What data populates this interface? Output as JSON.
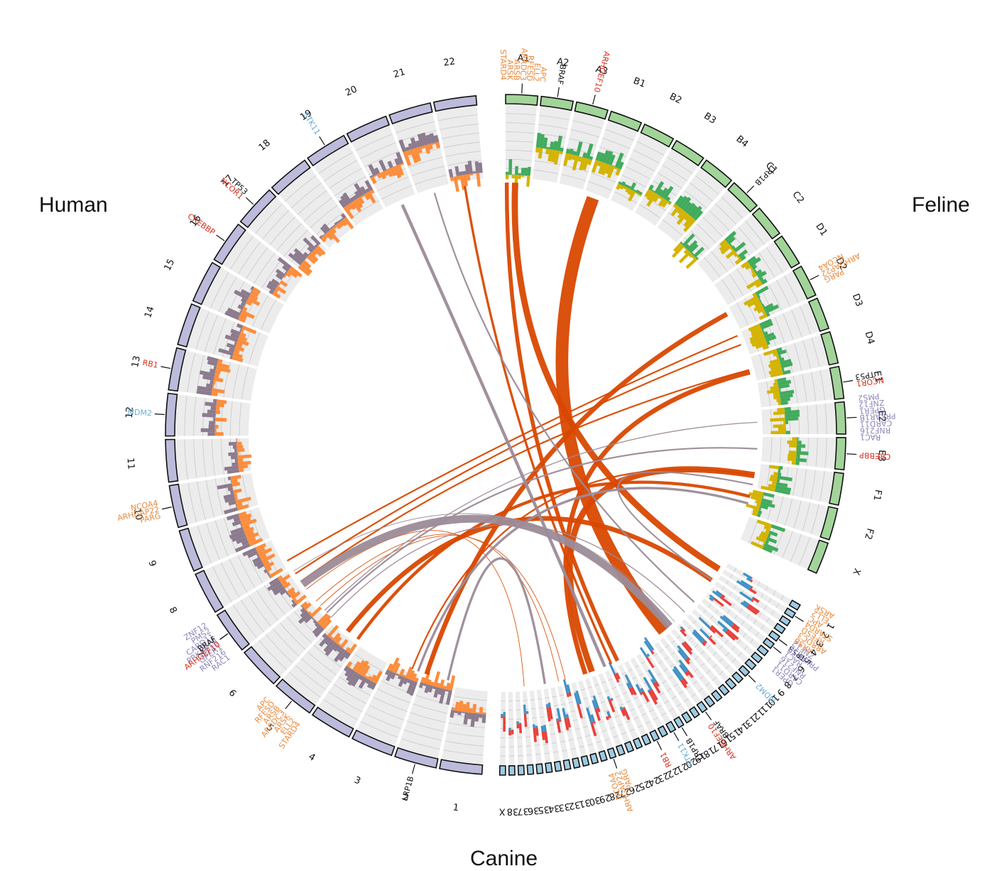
{
  "species_labels": {
    "human": "Human",
    "feline": "Feline",
    "canine": "Canine"
  },
  "colors": {
    "human_block": "#bcbbdb",
    "feline_block": "#a2d49a",
    "canine_block": "#9ecae1",
    "block_edge": "#111111",
    "track_bg": "#ececec",
    "track_line": "#c8c8c8",
    "human_gain": "#8c7b8e",
    "human_loss": "#fd8d3c",
    "feline_gain": "#41ab5d",
    "feline_loss": "#d4b300",
    "canine_gain": "#e8413c",
    "canine_loss": "#4292c6",
    "link_orange": "#d94801",
    "link_mauve": "#9c8b98",
    "gene_orange": "#e8893d",
    "gene_red": "#d7301f",
    "gene_purple": "#8e86b8",
    "gene_blue": "#6baed6",
    "gene_black": "#111111"
  },
  "genomes": [
    {
      "species": "Human",
      "chromosomes": [
        "1",
        "2",
        "3",
        "4",
        "5",
        "6",
        "7",
        "8",
        "9",
        "10",
        "11",
        "12",
        "13",
        "14",
        "15",
        "16",
        "17",
        "18",
        "19",
        "20",
        "21",
        "22"
      ]
    },
    {
      "species": "Feline",
      "chromosomes": [
        "A1",
        "A2",
        "A3",
        "B1",
        "B2",
        "B3",
        "B4",
        "C1",
        "C2",
        "D1",
        "D2",
        "D3",
        "D4",
        "E1",
        "E2",
        "E3",
        "F1",
        "F2",
        "X"
      ]
    },
    {
      "species": "Canine",
      "chromosomes": [
        "1",
        "2",
        "3",
        "4",
        "5",
        "6",
        "7",
        "8",
        "9",
        "10",
        "11",
        "12",
        "13",
        "14",
        "15",
        "16",
        "17",
        "18",
        "19",
        "20",
        "21",
        "22",
        "23",
        "24",
        "25",
        "26",
        "27",
        "28",
        "29",
        "30",
        "31",
        "32",
        "33",
        "34",
        "35",
        "36",
        "37",
        "38",
        "X"
      ]
    }
  ],
  "gene_groups": [
    {
      "species": "Human",
      "chrom": "2",
      "genes": [
        {
          "name": "LRP1B",
          "color": "black"
        }
      ]
    },
    {
      "species": "Human",
      "chrom": "5",
      "genes": [
        {
          "name": "STARD4",
          "color": "orange"
        },
        {
          "name": "ELL2",
          "color": "orange"
        },
        {
          "name": "ARSK",
          "color": "orange"
        },
        {
          "name": "ARRDC3",
          "color": "orange"
        },
        {
          "name": "ARSB",
          "color": "orange"
        },
        {
          "name": "RFESD",
          "color": "orange"
        },
        {
          "name": "APC",
          "color": "orange"
        }
      ]
    },
    {
      "species": "Human",
      "chrom": "7",
      "genes": [
        {
          "name": "RAC1",
          "color": "purple"
        },
        {
          "name": "RNF216",
          "color": "purple"
        },
        {
          "name": "GPER1",
          "color": "purple"
        },
        {
          "name": "PRKAR1B",
          "color": "purple"
        },
        {
          "name": "CARD11",
          "color": "purple"
        },
        {
          "name": "PMS2",
          "color": "purple"
        },
        {
          "name": "ZNF12",
          "color": "purple"
        }
      ]
    },
    {
      "species": "Human",
      "chrom": "7",
      "genes": [
        {
          "name": "ARHGEF10",
          "color": "red"
        },
        {
          "name": "BRAF",
          "color": "black"
        }
      ]
    },
    {
      "species": "Human",
      "chrom": "10",
      "genes": [
        {
          "name": "PARG",
          "color": "orange"
        },
        {
          "name": "ARHGAP22",
          "color": "orange"
        },
        {
          "name": "NCOA4",
          "color": "orange"
        }
      ]
    },
    {
      "species": "Human",
      "chrom": "12",
      "genes": [
        {
          "name": "MDM2",
          "color": "blue"
        }
      ]
    },
    {
      "species": "Human",
      "chrom": "13",
      "genes": [
        {
          "name": "RB1",
          "color": "red"
        }
      ]
    },
    {
      "species": "Human",
      "chrom": "16",
      "genes": [
        {
          "name": "CREBBP",
          "color": "red"
        }
      ]
    },
    {
      "species": "Human",
      "chrom": "17",
      "genes": [
        {
          "name": "NCOR1",
          "color": "red"
        },
        {
          "name": "TP53",
          "color": "black"
        }
      ]
    },
    {
      "species": "Human",
      "chrom": "19",
      "genes": [
        {
          "name": "STK11",
          "color": "blue"
        }
      ]
    },
    {
      "species": "Feline",
      "chrom": "A1",
      "genes": [
        {
          "name": "STARD4",
          "color": "orange"
        },
        {
          "name": "ARSK",
          "color": "orange"
        },
        {
          "name": "ARSB",
          "color": "orange"
        },
        {
          "name": "ARRDC3",
          "color": "orange"
        },
        {
          "name": "RFESD",
          "color": "orange"
        },
        {
          "name": "ELL2",
          "color": "orange"
        },
        {
          "name": "APC",
          "color": "orange"
        }
      ]
    },
    {
      "species": "Feline",
      "chrom": "A2",
      "genes": [
        {
          "name": "BRAF",
          "color": "black"
        }
      ]
    },
    {
      "species": "Feline",
      "chrom": "A3",
      "genes": [
        {
          "name": "ARHGEF10",
          "color": "red"
        }
      ]
    },
    {
      "species": "Feline",
      "chrom": "C1",
      "genes": [
        {
          "name": "LRP1B",
          "color": "black"
        }
      ]
    },
    {
      "species": "Feline",
      "chrom": "D2",
      "genes": [
        {
          "name": "NCOA4",
          "color": "orange"
        },
        {
          "name": "ARHGAP22",
          "color": "orange"
        },
        {
          "name": "PARG",
          "color": "orange"
        }
      ]
    },
    {
      "species": "Feline",
      "chrom": "E1",
      "genes": [
        {
          "name": "TP53",
          "color": "black"
        },
        {
          "name": "NCOR1",
          "color": "red"
        }
      ]
    },
    {
      "species": "Feline",
      "chrom": "E2",
      "genes": [
        {
          "name": "PMS2",
          "color": "purple"
        },
        {
          "name": "ZNF12",
          "color": "purple"
        },
        {
          "name": "GPER1",
          "color": "purple"
        },
        {
          "name": "PRKAR1B",
          "color": "purple"
        },
        {
          "name": "CARD11",
          "color": "purple"
        },
        {
          "name": "RNF216",
          "color": "purple"
        },
        {
          "name": "RAC1",
          "color": "purple"
        }
      ]
    },
    {
      "species": "Feline",
      "chrom": "E3",
      "genes": [
        {
          "name": "CREBBP",
          "color": "red"
        }
      ]
    },
    {
      "species": "Canine",
      "chrom": "2",
      "genes": [
        {
          "name": "ARSK",
          "color": "orange"
        },
        {
          "name": "ELL2",
          "color": "orange"
        },
        {
          "name": "APC",
          "color": "orange"
        },
        {
          "name": "STARD4",
          "color": "orange"
        },
        {
          "name": "RFESD",
          "color": "orange"
        },
        {
          "name": "ARRDC3",
          "color": "orange"
        },
        {
          "name": "ARSB",
          "color": "orange"
        }
      ]
    },
    {
      "species": "Canine",
      "chrom": "5",
      "genes": [
        {
          "name": "PRKAR1B",
          "color": "purple"
        }
      ]
    },
    {
      "species": "Canine",
      "chrom": "5",
      "genes": [
        {
          "name": "TP53",
          "color": "black"
        }
      ]
    },
    {
      "species": "Canine",
      "chrom": "6",
      "genes": [
        {
          "name": "ZNF12",
          "color": "purple"
        },
        {
          "name": "PMS2",
          "color": "purple"
        },
        {
          "name": "RAC1",
          "color": "purple"
        },
        {
          "name": "RNF216",
          "color": "purple"
        },
        {
          "name": "CARD11",
          "color": "purple"
        },
        {
          "name": "GPER1",
          "color": "purple"
        }
      ]
    },
    {
      "species": "Canine",
      "chrom": "10",
      "genes": [
        {
          "name": "MDM2",
          "color": "blue"
        }
      ]
    },
    {
      "species": "Canine",
      "chrom": "16",
      "genes": [
        {
          "name": "BRAF",
          "color": "black"
        },
        {
          "name": "ARHGEF10",
          "color": "red"
        }
      ]
    },
    {
      "species": "Canine",
      "chrom": "19",
      "genes": [
        {
          "name": "LRP1B",
          "color": "black"
        }
      ]
    },
    {
      "species": "Canine",
      "chrom": "20",
      "genes": [
        {
          "name": "STK11",
          "color": "blue"
        }
      ]
    },
    {
      "species": "Canine",
      "chrom": "22",
      "genes": [
        {
          "name": "RB1",
          "color": "red"
        }
      ]
    },
    {
      "species": "Canine",
      "chrom": "27",
      "genes": [
        {
          "name": "PARG",
          "color": "orange"
        },
        {
          "name": "ARHGAP22",
          "color": "orange"
        },
        {
          "name": "NCOA4",
          "color": "orange"
        }
      ]
    }
  ],
  "links": [
    {
      "from": {
        "species": "Human",
        "chrom": "5",
        "pos": 0.5
      },
      "to": {
        "species": "Canine",
        "chrom": "4",
        "pos": 0.5
      },
      "color": "orange",
      "weight": 3
    },
    {
      "from": {
        "species": "Human",
        "chrom": "5",
        "pos": 0.1
      },
      "to": {
        "species": "Feline",
        "chrom": "F2",
        "pos": 0.3
      },
      "color": "orange",
      "weight": 2
    },
    {
      "from": {
        "species": "Human",
        "chrom": "2",
        "pos": 0.9
      },
      "to": {
        "species": "Feline",
        "chrom": "D2",
        "pos": 0.2
      },
      "color": "orange",
      "weight": 3
    },
    {
      "from": {
        "species": "Human",
        "chrom": "7",
        "pos": 0.8
      },
      "to": {
        "species": "Feline",
        "chrom": "D3",
        "pos": 0.5
      },
      "color": "orange",
      "weight": 1
    },
    {
      "from": {
        "species": "Human",
        "chrom": "7",
        "pos": 0.5
      },
      "to": {
        "species": "Feline",
        "chrom": "D4",
        "pos": 0.5
      },
      "color": "orange",
      "weight": 1
    },
    {
      "from": {
        "species": "Human",
        "chrom": "8",
        "pos": 0.2
      },
      "to": {
        "species": "Feline",
        "chrom": "D3",
        "pos": 0.1
      },
      "color": "orange",
      "weight": 1
    },
    {
      "from": {
        "species": "Human",
        "chrom": "7",
        "pos": 0.2
      },
      "to": {
        "species": "Canine",
        "chrom": "36",
        "pos": 0.5
      },
      "color": "orange",
      "weight": 0.4
    },
    {
      "from": {
        "species": "Human",
        "chrom": "6",
        "pos": 0.8
      },
      "to": {
        "species": "Canine",
        "chrom": "31",
        "pos": 0.5
      },
      "color": "orange",
      "weight": 0.4
    },
    {
      "from": {
        "species": "Human",
        "chrom": "6",
        "pos": 0.6
      },
      "to": {
        "species": "Canine",
        "chrom": "30",
        "pos": 0.5
      },
      "color": "orange",
      "weight": 0.4
    },
    {
      "from": {
        "species": "Human",
        "chrom": "22",
        "pos": 0.4
      },
      "to": {
        "species": "Canine",
        "chrom": "23",
        "pos": 0.5
      },
      "color": "orange",
      "weight": 1.5
    },
    {
      "from": {
        "species": "Feline",
        "chrom": "A1",
        "pos": 0.05
      },
      "to": {
        "species": "Canine",
        "chrom": "22",
        "pos": 0.5
      },
      "color": "orange",
      "weight": 2.5
    },
    {
      "from": {
        "species": "Feline",
        "chrom": "A1",
        "pos": 0.4
      },
      "to": {
        "species": "Canine",
        "chrom": "2",
        "pos": 0.6
      },
      "color": "orange",
      "weight": 4
    },
    {
      "from": {
        "species": "Feline",
        "chrom": "B1",
        "pos": 0.4
      },
      "to": {
        "species": "Canine",
        "chrom": "14",
        "pos": 0.5
      },
      "color": "orange",
      "weight": 8
    },
    {
      "from": {
        "species": "Feline",
        "chrom": "D4",
        "pos": 0.6
      },
      "to": {
        "species": "Canine",
        "chrom": "27",
        "pos": 0.5
      },
      "color": "orange",
      "weight": 3
    },
    {
      "from": {
        "species": "Feline",
        "chrom": "F1",
        "pos": 0.5
      },
      "to": {
        "species": "Canine",
        "chrom": "26",
        "pos": 0.5
      },
      "color": "orange",
      "weight": 4
    },
    {
      "from": {
        "species": "Human",
        "chrom": "3",
        "pos": 0.3
      },
      "to": {
        "species": "Feline",
        "chrom": "F1",
        "pos": 0.5
      },
      "color": "orange",
      "weight": 1
    },
    {
      "from": {
        "species": "Human",
        "chrom": "20",
        "pos": 0.5
      },
      "to": {
        "species": "Canine",
        "chrom": "24",
        "pos": 0.5
      },
      "color": "mauve",
      "weight": 2
    },
    {
      "from": {
        "species": "Human",
        "chrom": "21",
        "pos": 0.5
      },
      "to": {
        "species": "Canine",
        "chrom": "8",
        "pos": 0.5
      },
      "color": "mauve",
      "weight": 1
    },
    {
      "from": {
        "species": "Human",
        "chrom": "7",
        "pos": 0.4
      },
      "to": {
        "species": "Canine",
        "chrom": "13",
        "pos": 0.5
      },
      "color": "mauve",
      "weight": 5
    },
    {
      "from": {
        "species": "Human",
        "chrom": "6",
        "pos": 0.3
      },
      "to": {
        "species": "Feline",
        "chrom": "E3",
        "pos": 0.5
      },
      "color": "mauve",
      "weight": 1
    },
    {
      "from": {
        "species": "Human",
        "chrom": "6",
        "pos": 0.4
      },
      "to": {
        "species": "Feline",
        "chrom": "E2",
        "pos": 0.5
      },
      "color": "mauve",
      "weight": 0.6
    },
    {
      "from": {
        "species": "Human",
        "chrom": "3",
        "pos": 0.1
      },
      "to": {
        "species": "Feline",
        "chrom": "F2",
        "pos": 0.6
      },
      "color": "mauve",
      "weight": 1.5
    },
    {
      "from": {
        "species": "Human",
        "chrom": "2",
        "pos": 0.2
      },
      "to": {
        "species": "Canine",
        "chrom": "33",
        "pos": 0.5
      },
      "color": "mauve",
      "weight": 1.5
    },
    {
      "from": {
        "species": "Feline",
        "chrom": "F1",
        "pos": 0.9
      },
      "to": {
        "species": "Canine",
        "chrom": "4",
        "pos": 0.4
      },
      "color": "mauve",
      "weight": 1
    },
    {
      "from": {
        "species": "Human",
        "chrom": "6",
        "pos": 0.1
      },
      "to": {
        "species": "Canine",
        "chrom": "10",
        "pos": 0.5
      },
      "color": "mauve",
      "weight": 0.6
    },
    {
      "from": {
        "species": "Human",
        "chrom": "7",
        "pos": 0.9
      },
      "to": {
        "species": "Canine",
        "chrom": "12",
        "pos": 0.5
      },
      "color": "mauve",
      "weight": 0.4
    }
  ]
}
